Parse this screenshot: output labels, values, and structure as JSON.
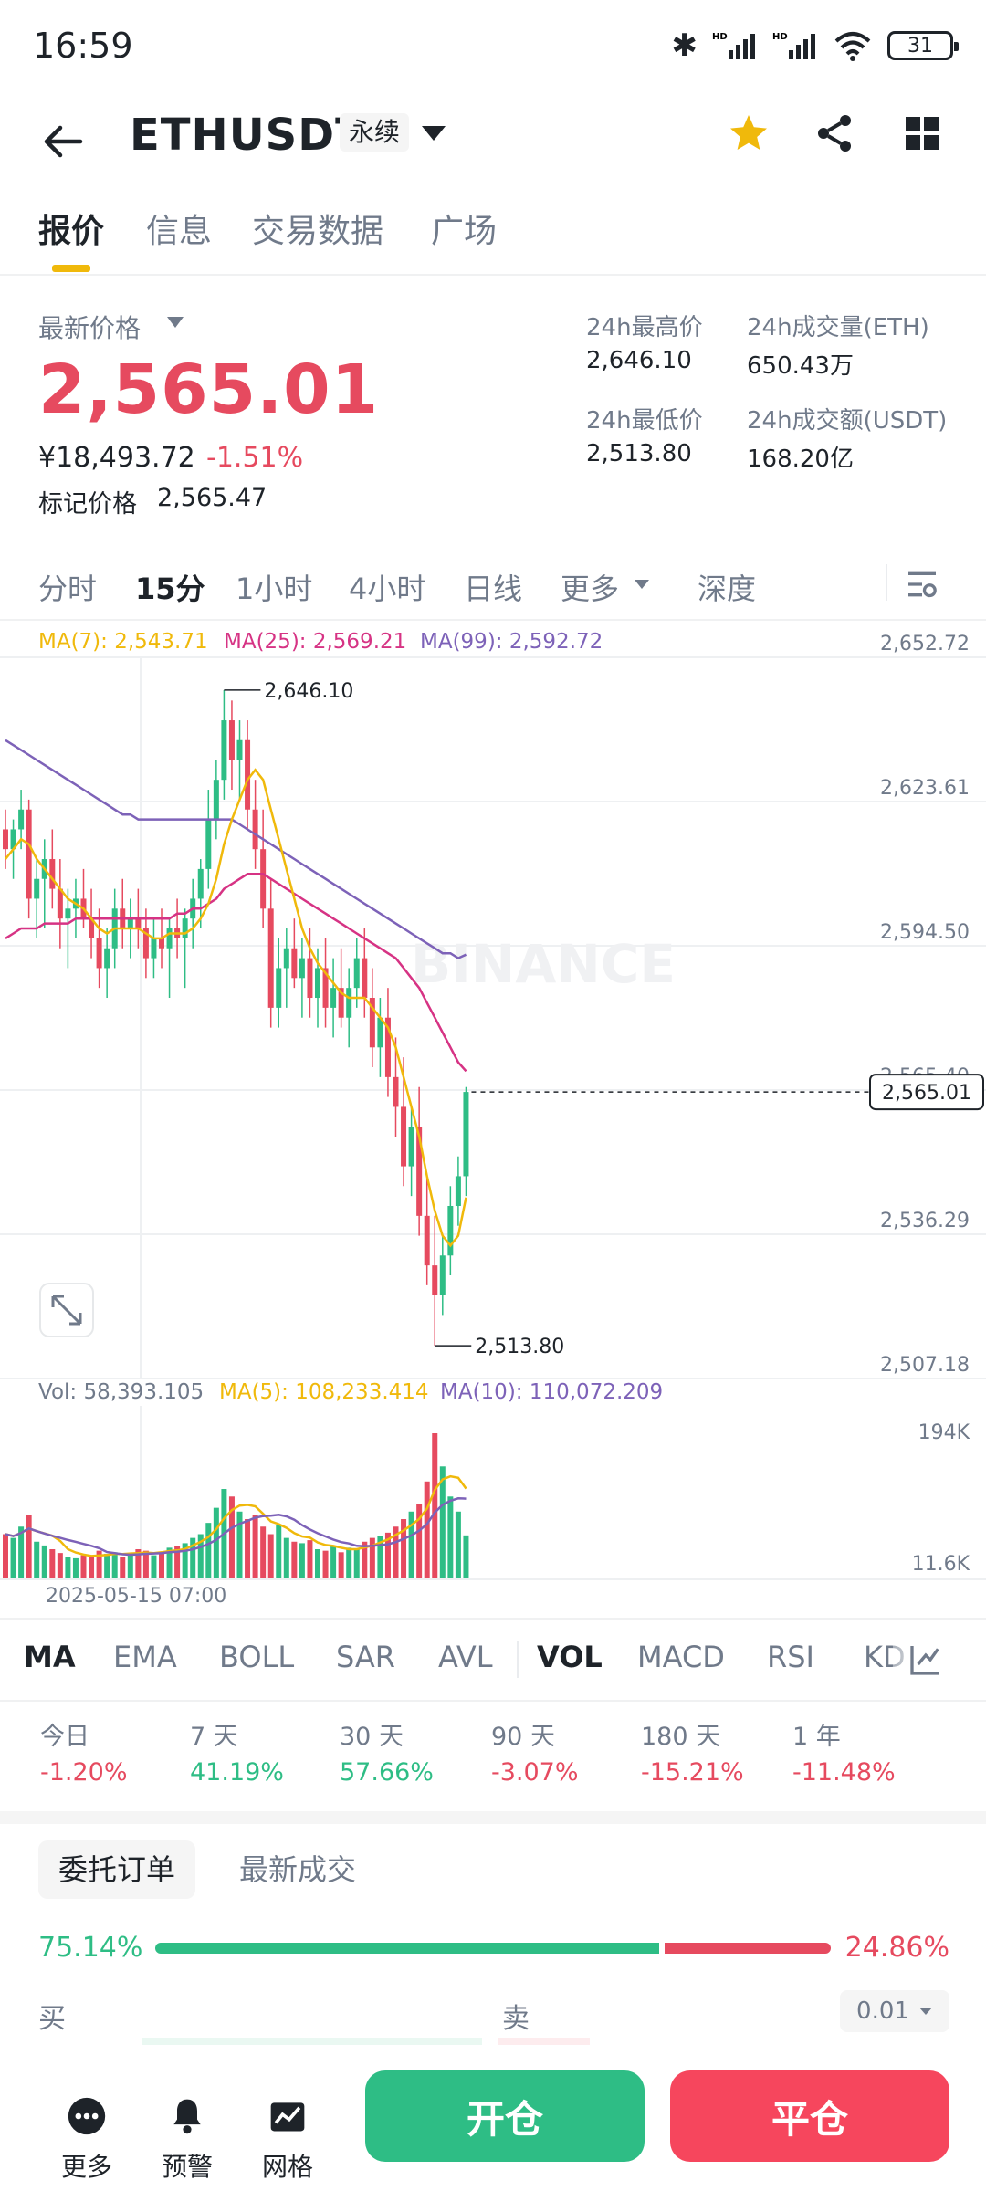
{
  "status": {
    "time": "16:59",
    "battery": "31"
  },
  "header": {
    "symbol": "ETHUSDT",
    "contract_tag": "永续"
  },
  "tabs": [
    "报价",
    "信息",
    "交易数据",
    "广场"
  ],
  "price": {
    "latest_label": "最新价格",
    "latest_value": "2,565.01",
    "cny_value": "¥18,493.72",
    "change_pct": "-1.51%",
    "mark_label": "标记价格",
    "mark_value": "2,565.47"
  },
  "stats": [
    {
      "label": "24h最高价",
      "value": "2,646.10"
    },
    {
      "label": "24h成交量(ETH)",
      "value": "650.43万"
    },
    {
      "label": "24h最低价",
      "value": "2,513.80"
    },
    {
      "label": "24h成交额(USDT)",
      "value": "168.20亿"
    }
  ],
  "intervals": {
    "items": [
      "分时",
      "15分",
      "1小时",
      "4小时",
      "日线",
      "更多",
      "深度"
    ],
    "active": "15分"
  },
  "ma_legend": {
    "ma7": "MA(7): 2,543.71",
    "ma25": "MA(25): 2,569.21",
    "ma99": "MA(99): 2,592.72"
  },
  "y_axis": [
    "2,652.72",
    "2,623.61",
    "2,594.50",
    "2,565.40",
    "2,536.29",
    "2,507.18"
  ],
  "current_price_tag": "2,565.01",
  "high_marker": "2,646.10",
  "low_marker": "2,513.80",
  "watermark": "BINANCE",
  "volume_legend": {
    "vol": "Vol: 58,393.105",
    "ma5": "MA(5): 108,233.414",
    "ma10": "MA(10): 110,072.209"
  },
  "volume_axis": [
    "194K",
    "11.6K"
  ],
  "time_label": "2025-05-15 07:00",
  "colors": {
    "up": "#2ebd85",
    "down": "#e64a5f",
    "ma7": "#f0b90b",
    "ma25": "#d63384",
    "ma99": "#7d62b8",
    "accent": "#f0b90b"
  },
  "indicators": {
    "items": [
      "MA",
      "EMA",
      "BOLL",
      "SAR",
      "AVL",
      "VOL",
      "MACD",
      "RSI",
      "KD"
    ],
    "active": [
      "MA",
      "VOL"
    ]
  },
  "performance": [
    {
      "label": "今日",
      "value": "-1.20%"
    },
    {
      "label": "7 天",
      "value": "41.19%"
    },
    {
      "label": "30 天",
      "value": "57.66%"
    },
    {
      "label": "90 天",
      "value": "-3.07%"
    },
    {
      "label": "180 天",
      "value": "-15.21%"
    },
    {
      "label": "1 年",
      "value": "-11.48%"
    }
  ],
  "order_tabs": [
    "委托订单",
    "最新成交"
  ],
  "order_ratio": {
    "buy_pct": "75.14%",
    "sell_pct": "24.86%",
    "buy_fraction": 0.7514
  },
  "order_book": {
    "buy_label": "买",
    "sell_label": "卖",
    "precision": "0.01"
  },
  "bottom": {
    "more": "更多",
    "alert": "预警",
    "grid": "网格",
    "open": "开仓",
    "close": "平仓"
  },
  "chart_data": {
    "type": "candlestick",
    "title": "",
    "ylim": [
      2507.18,
      2652.72
    ],
    "y_ticks": [
      2652.72,
      2623.61,
      2594.5,
      2565.4,
      2536.29,
      2507.18
    ],
    "high": 2646.1,
    "low": 2513.8,
    "last": 2565.01,
    "candles": [
      [
        2618,
        2622,
        2610,
        2614
      ],
      [
        2614,
        2620,
        2608,
        2618
      ],
      [
        2618,
        2626,
        2614,
        2622
      ],
      [
        2622,
        2624,
        2600,
        2604
      ],
      [
        2604,
        2612,
        2596,
        2608
      ],
      [
        2608,
        2616,
        2598,
        2612
      ],
      [
        2612,
        2618,
        2602,
        2606
      ],
      [
        2606,
        2612,
        2594,
        2600
      ],
      [
        2600,
        2606,
        2590,
        2602
      ],
      [
        2602,
        2608,
        2596,
        2604
      ],
      [
        2604,
        2610,
        2598,
        2600
      ],
      [
        2600,
        2606,
        2592,
        2596
      ],
      [
        2596,
        2602,
        2586,
        2590
      ],
      [
        2590,
        2598,
        2584,
        2594
      ],
      [
        2594,
        2606,
        2590,
        2602
      ],
      [
        2602,
        2608,
        2594,
        2598
      ],
      [
        2598,
        2604,
        2592,
        2600
      ],
      [
        2600,
        2606,
        2594,
        2598
      ],
      [
        2598,
        2602,
        2588,
        2592
      ],
      [
        2592,
        2600,
        2588,
        2596
      ],
      [
        2596,
        2602,
        2590,
        2594
      ],
      [
        2594,
        2600,
        2584,
        2598
      ],
      [
        2598,
        2604,
        2592,
        2596
      ],
      [
        2596,
        2602,
        2586,
        2600
      ],
      [
        2600,
        2608,
        2594,
        2604
      ],
      [
        2604,
        2612,
        2598,
        2610
      ],
      [
        2610,
        2626,
        2606,
        2620
      ],
      [
        2620,
        2632,
        2616,
        2628
      ],
      [
        2628,
        2646.1,
        2624,
        2640
      ],
      [
        2640,
        2644,
        2626,
        2632
      ],
      [
        2632,
        2640,
        2624,
        2636
      ],
      [
        2636,
        2640,
        2618,
        2622
      ],
      [
        2622,
        2628,
        2610,
        2614
      ],
      [
        2614,
        2622,
        2598,
        2602
      ],
      [
        2602,
        2608,
        2578,
        2582
      ],
      [
        2582,
        2596,
        2578,
        2590
      ],
      [
        2590,
        2598,
        2582,
        2594
      ],
      [
        2594,
        2600,
        2586,
        2588
      ],
      [
        2588,
        2596,
        2580,
        2592
      ],
      [
        2592,
        2598,
        2580,
        2584
      ],
      [
        2584,
        2594,
        2578,
        2590
      ],
      [
        2590,
        2596,
        2578,
        2582
      ],
      [
        2582,
        2592,
        2576,
        2586
      ],
      [
        2586,
        2594,
        2578,
        2580
      ],
      [
        2580,
        2590,
        2574,
        2586
      ],
      [
        2586,
        2596,
        2582,
        2592
      ],
      [
        2592,
        2598,
        2580,
        2584
      ],
      [
        2584,
        2590,
        2570,
        2574
      ],
      [
        2574,
        2584,
        2568,
        2580
      ],
      [
        2580,
        2586,
        2564,
        2568
      ],
      [
        2568,
        2576,
        2556,
        2562
      ],
      [
        2562,
        2572,
        2546,
        2550
      ],
      [
        2550,
        2562,
        2544,
        2558
      ],
      [
        2558,
        2566,
        2536,
        2540
      ],
      [
        2540,
        2548,
        2526,
        2530
      ],
      [
        2530,
        2540,
        2513.8,
        2524
      ],
      [
        2524,
        2536,
        2520,
        2532
      ],
      [
        2532,
        2546,
        2528,
        2542
      ],
      [
        2542,
        2552,
        2538,
        2548
      ],
      [
        2548,
        2566,
        2544,
        2565.01
      ]
    ],
    "ma7": [
      2612,
      2614,
      2616,
      2615,
      2612,
      2610,
      2608,
      2606,
      2604,
      2603,
      2602,
      2600,
      2598,
      2597,
      2598,
      2598,
      2598,
      2598,
      2597,
      2596,
      2596,
      2597,
      2597,
      2597,
      2598,
      2600,
      2603,
      2608,
      2615,
      2620,
      2624,
      2628,
      2630,
      2628,
      2622,
      2616,
      2610,
      2604,
      2598,
      2594,
      2591,
      2589,
      2587,
      2585,
      2584,
      2584,
      2584,
      2582,
      2580,
      2578,
      2574,
      2568,
      2562,
      2556,
      2548,
      2541,
      2536,
      2534,
      2536,
      2543.71
    ],
    "ma25": [
      2596,
      2597,
      2598,
      2598,
      2598,
      2599,
      2599,
      2599,
      2599,
      2600,
      2600,
      2600,
      2600,
      2600,
      2600,
      2600,
      2600,
      2600,
      2600,
      2600,
      2600,
      2600,
      2601,
      2601,
      2602,
      2602,
      2603,
      2604,
      2606,
      2607,
      2608,
      2609,
      2609,
      2609,
      2608,
      2607,
      2606,
      2605,
      2604,
      2603,
      2602,
      2601,
      2600,
      2599,
      2598,
      2597,
      2596,
      2595,
      2594,
      2593,
      2592,
      2590,
      2588,
      2586,
      2583,
      2580,
      2577,
      2574,
      2571,
      2569.21
    ],
    "ma99": [
      2636,
      2635,
      2634,
      2633,
      2632,
      2631,
      2630,
      2629,
      2628,
      2627,
      2626,
      2625,
      2624,
      2623,
      2622,
      2621,
      2621,
      2620,
      2620,
      2620,
      2620,
      2620,
      2620,
      2620,
      2620,
      2620,
      2620,
      2620,
      2620,
      2620,
      2619,
      2618,
      2617,
      2616,
      2615,
      2614,
      2613,
      2612,
      2611,
      2610,
      2609,
      2608,
      2607,
      2606,
      2605,
      2604,
      2603,
      2602,
      2601,
      2600,
      2599,
      2598,
      2597,
      2596,
      2595,
      2594,
      2593,
      2593,
      2592,
      2592.72
    ],
    "volume": [
      60,
      55,
      70,
      85,
      50,
      45,
      40,
      35,
      30,
      28,
      32,
      30,
      38,
      34,
      36,
      30,
      34,
      40,
      38,
      32,
      36,
      42,
      44,
      48,
      55,
      60,
      75,
      95,
      120,
      110,
      90,
      80,
      85,
      70,
      60,
      72,
      55,
      50,
      48,
      52,
      40,
      38,
      44,
      36,
      42,
      40,
      50,
      55,
      58,
      62,
      70,
      80,
      90,
      100,
      130,
      194,
      150,
      110,
      90,
      58.4
    ],
    "volume_ylim": [
      0,
      194
    ]
  }
}
